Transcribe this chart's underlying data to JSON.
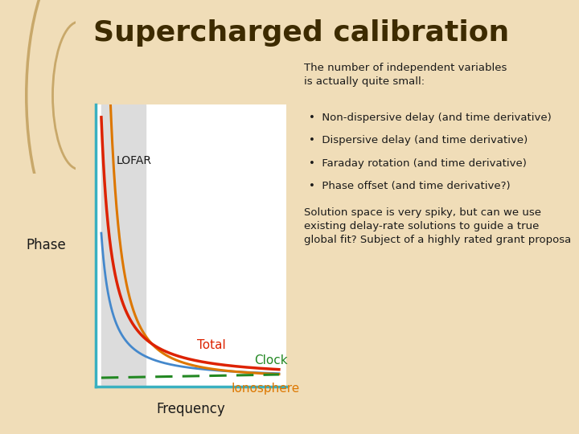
{
  "title": "Supercharged calibration",
  "title_color": "#3d2b00",
  "title_fontsize": 26,
  "title_weight": "bold",
  "bg_color": "#f0ddb8",
  "plot_bg_color": "#ffffff",
  "lofar_shade_color": "#dcdcdc",
  "lofar_label": "LOFAR",
  "xlabel": "Frequency",
  "ylabel": "Phase",
  "axis_color": "#3ab0c0",
  "curve_total_color": "#dd2200",
  "curve_clock_color": "#4488cc",
  "curve_ionosphere_color": "#dd7700",
  "curve_clock_dashed_color": "#228822",
  "label_total": "Total",
  "label_clock": "Clock",
  "label_ionosphere": "Ionosphere",
  "text_block1_title": "The number of independent variables\nis actually quite small:",
  "text_block1_bullets": [
    "Non-dispersive delay (and time derivative)",
    "Dispersive delay (and time derivative)",
    "Faraday rotation (and time derivative)",
    "Phase offset (and time derivative?)"
  ],
  "text_block2": "Solution space is very spiky, but can we use\nexisting delay-rate solutions to guide a true\nglobal fit? Subject of a highly rated grant proposa",
  "text_color": "#1a1a1a",
  "text_fontsize": 9.5,
  "arc_color": "#c8a86a"
}
